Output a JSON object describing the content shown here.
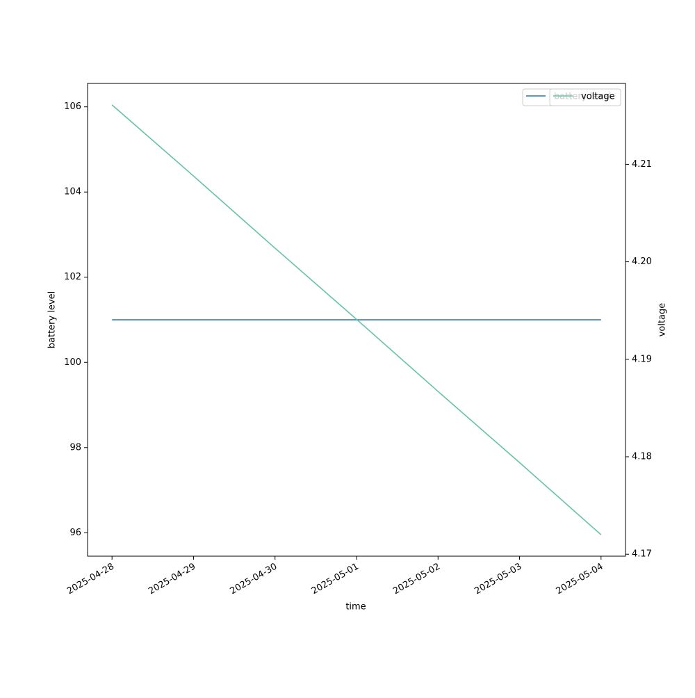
{
  "chart_data": {
    "type": "line",
    "x": [
      "2025-04-28",
      "2025-04-29",
      "2025-04-30",
      "2025-05-01",
      "2025-05-02",
      "2025-05-03",
      "2025-05-04"
    ],
    "xlim": [
      "2025-04-27T16:48",
      "2025-05-04T07:12"
    ],
    "xlabel": "time",
    "ylabel": "battery level",
    "y2label": "voltage",
    "ylim": [
      95.45,
      106.55
    ],
    "yticks": [
      96,
      98,
      100,
      102,
      104,
      106
    ],
    "y2lim": [
      4.1698,
      4.2183
    ],
    "y2ticks": [
      4.17,
      4.18,
      4.19,
      {
        "value": 4.2,
        "label": "4.20"
      },
      4.21
    ],
    "legend": "upper right",
    "series": [
      {
        "name": "battery level",
        "color": "#1f77b4",
        "values": [
          101,
          101,
          101,
          101,
          101,
          101,
          101
        ]
      },
      {
        "name": "voltage",
        "color": "#66c2a5",
        "axis": "y2",
        "values": [
          4.2161,
          4.2088,
          4.2014,
          4.1941,
          4.1867,
          4.1794,
          4.172
        ]
      }
    ]
  }
}
